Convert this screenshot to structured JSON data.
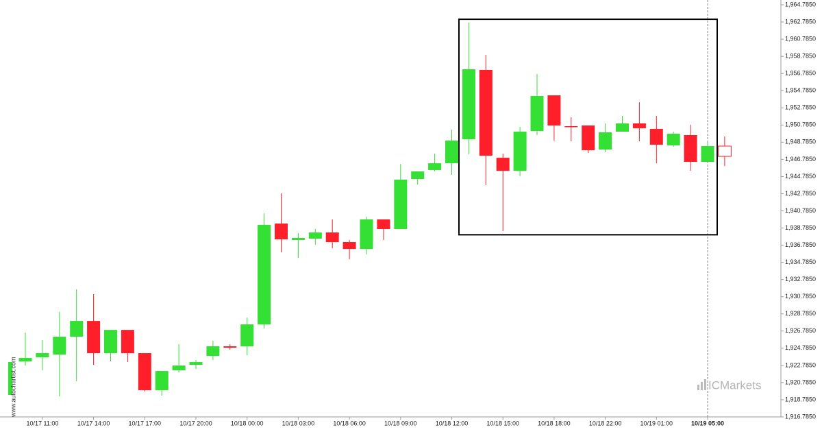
{
  "chart_data": {
    "type": "candlestick",
    "categories": [
      null,
      "10/17 11:00",
      null,
      null,
      "10/17 14:00",
      null,
      null,
      "10/17 17:00",
      null,
      null,
      "10/17 20:00",
      null,
      null,
      "10/18 00:00",
      null,
      null,
      "10/18 03:00",
      null,
      null,
      "10/18 06:00",
      null,
      null,
      "10/18 09:00",
      null,
      null,
      "10/18 12:00",
      null,
      null,
      "10/18 15:00",
      null,
      null,
      "10/18 18:00",
      null,
      null,
      "10/18 22:00",
      null,
      null,
      "10/19 01:00",
      null,
      null,
      "10/19 05:00",
      null
    ],
    "open": [
      1923.25,
      1923.73,
      1924.05,
      1926.13,
      1927.96,
      1924.21,
      1926.92,
      1924.21,
      1919.9,
      1922.21,
      1922.85,
      1923.89,
      1925.01,
      1925.01,
      1927.56,
      1939.31,
      1937.39,
      1937.55,
      1938.27,
      1937.15,
      1936.35,
      1939.79,
      1938.67,
      1944.5,
      1945.54,
      1946.33,
      1949.13,
      1957.2,
      1946.97,
      1945.45,
      1950.09,
      1954.24,
      1950.65,
      1950.73,
      1947.93,
      1950.01,
      1950.97,
      1950.33,
      1948.41,
      1949.61,
      1946.49,
      1948.33
    ],
    "high": [
      1926.6,
      1925.73,
      1929.0,
      1931.64,
      1931.08,
      1926.92,
      1926.92,
      1924.21,
      1922.13,
      1925.25,
      1923.41,
      1925.65,
      1925.25,
      1928.36,
      1940.5,
      1942.82,
      1938.19,
      1938.67,
      1939.79,
      1937.39,
      1940.1,
      1939.79,
      1946.25,
      1945.38,
      1947.45,
      1950.25,
      1962.71,
      1958.95,
      1947.45,
      1950.57,
      1956.72,
      1954.24,
      1951.69,
      1950.73,
      1950.97,
      1951.85,
      1953.44,
      1951.85,
      1950.01,
      1950.81,
      1948.73,
      1949.45
    ],
    "low": [
      1922.77,
      1922.21,
      1919.18,
      1920.94,
      1922.85,
      1923.25,
      1923.17,
      1919.74,
      1919.26,
      1921.97,
      1922.37,
      1923.41,
      1924.61,
      1923.97,
      1927.09,
      1935.95,
      1935.31,
      1936.83,
      1936.43,
      1935.15,
      1935.71,
      1937.39,
      1938.67,
      1943.86,
      1945.38,
      1944.98,
      1947.37,
      1943.78,
      1938.43,
      1944.82,
      1949.61,
      1948.97,
      1948.89,
      1947.53,
      1947.61,
      1950.01,
      1948.89,
      1946.33,
      1948.25,
      1945.45,
      1946.49,
      1946.01
    ],
    "close": [
      1923.65,
      1924.21,
      1926.13,
      1927.96,
      1924.21,
      1926.92,
      1924.21,
      1919.9,
      1922.13,
      1922.77,
      1923.17,
      1925.01,
      1924.85,
      1927.56,
      1939.15,
      1937.47,
      1937.63,
      1938.27,
      1937.15,
      1936.35,
      1939.79,
      1938.67,
      1944.42,
      1945.38,
      1946.33,
      1948.97,
      1957.28,
      1947.21,
      1945.45,
      1950.01,
      1954.16,
      1950.73,
      1950.57,
      1947.85,
      1949.93,
      1950.97,
      1950.41,
      1948.49,
      1949.77,
      1946.49,
      1948.33,
      1947.13
    ],
    "up_color": "#33e033",
    "down_color": "#ff1f2a",
    "current_candle_style": "hollow",
    "pattern": {
      "high": 1963.1,
      "low": 1938.0,
      "color": "#000000"
    },
    "ylim": [
      1916.785,
      1964.785
    ],
    "yticks": [
      {
        "value": 1916.785,
        "label": "1,916.7850"
      },
      {
        "value": 1918.785,
        "label": "1,918.7850"
      },
      {
        "value": 1920.785,
        "label": "1,920.7850"
      },
      {
        "value": 1922.785,
        "label": "1,922.7850"
      },
      {
        "value": 1924.785,
        "label": "1,924.7850"
      },
      {
        "value": 1926.785,
        "label": "1,926.7850"
      },
      {
        "value": 1928.785,
        "label": "1,928.7850"
      },
      {
        "value": 1930.785,
        "label": "1,930.7850"
      },
      {
        "value": 1932.785,
        "label": "1,932.7850"
      },
      {
        "value": 1934.785,
        "label": "1,934.7850"
      },
      {
        "value": 1936.785,
        "label": "1,936.7850"
      },
      {
        "value": 1938.785,
        "label": "1,938.7850"
      },
      {
        "value": 1940.785,
        "label": "1,940.7850"
      },
      {
        "value": 1942.785,
        "label": "1,942.7850"
      },
      {
        "value": 1944.785,
        "label": "1,944.7850"
      },
      {
        "value": 1946.785,
        "label": "1,946.7850"
      },
      {
        "value": 1948.785,
        "label": "1,948.7850"
      },
      {
        "value": 1950.785,
        "label": "1,950.7850"
      },
      {
        "value": 1952.785,
        "label": "1,952.7850"
      },
      {
        "value": 1954.785,
        "label": "1,954.7850"
      },
      {
        "value": 1956.785,
        "label": "1,956.7850"
      },
      {
        "value": 1958.785,
        "label": "1,958.7850"
      },
      {
        "value": 1960.785,
        "label": "1,960.7850"
      },
      {
        "value": 1962.785,
        "label": "1,962.7850"
      },
      {
        "value": 1964.785,
        "label": "1,964.7850"
      }
    ],
    "grid": false,
    "watermark": "www.autochartist.com",
    "brand": "ICMarkets"
  }
}
